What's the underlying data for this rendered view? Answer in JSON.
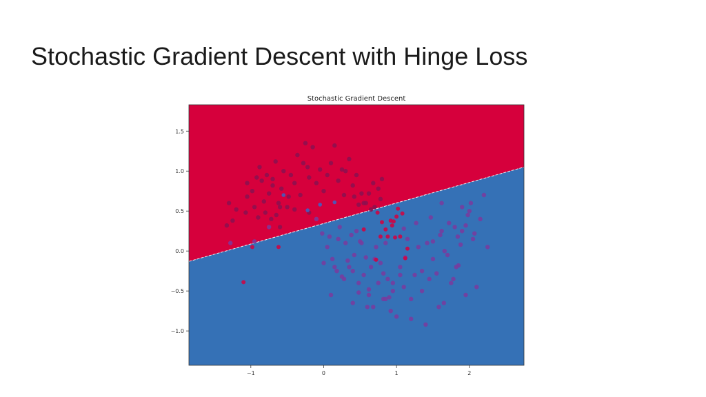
{
  "slide": {
    "title": "Stochastic Gradient Descent with Hinge Loss"
  },
  "chart_data": {
    "type": "scatter",
    "title": "Stochastic Gradient Descent",
    "xlabel": "",
    "ylabel": "",
    "xlim": [
      -1.85,
      2.75
    ],
    "ylim": [
      -1.43,
      1.83
    ],
    "xticks": [
      -1,
      0,
      1,
      2
    ],
    "xtick_labels": [
      "−1",
      "0",
      "1",
      "2"
    ],
    "yticks": [
      1.5,
      1.0,
      0.5,
      0.0,
      -0.5,
      -1.0
    ],
    "ytick_labels": [
      "1.5",
      "1.0",
      "0.5",
      "0.0",
      "−0.5",
      "−1.0"
    ],
    "grid": false,
    "decision_boundary": {
      "x": [
        -1.85,
        2.75
      ],
      "y": [
        -0.13,
        1.05
      ]
    },
    "regions": {
      "above": "#d6003c",
      "below": "#3571b6"
    },
    "series": [
      {
        "color": "#8a1050",
        "x": [
          -1.33,
          -1.25,
          -1.2,
          -1.07,
          -1.05,
          -1.05,
          -0.98,
          -0.95,
          -0.92,
          -0.88,
          -0.85,
          -0.82,
          -0.8,
          -0.78,
          -0.75,
          -0.72,
          -0.7,
          -0.66,
          -0.62,
          -0.6,
          -0.58,
          -0.55,
          -0.5,
          -0.48,
          -0.45,
          -0.4,
          -0.36,
          -0.32,
          -0.28,
          -0.25,
          -0.22,
          -0.2,
          -0.15,
          -0.1,
          -0.05,
          0.0,
          0.05,
          0.1,
          0.15,
          0.2,
          0.25,
          0.3,
          0.35,
          0.4,
          0.45,
          0.55,
          0.62,
          0.68,
          0.7,
          0.75,
          0.78,
          0.8,
          0.65,
          0.58,
          0.52,
          0.48,
          -0.9,
          -0.6,
          -0.65,
          -1.3,
          -0.7,
          0.28,
          -0.2,
          0.42,
          -0.4
        ],
        "y": [
          0.32,
          0.38,
          0.52,
          0.48,
          0.68,
          0.85,
          0.75,
          0.55,
          0.92,
          1.05,
          0.88,
          0.62,
          0.48,
          0.95,
          0.72,
          0.4,
          0.82,
          1.12,
          0.6,
          0.3,
          0.78,
          1.0,
          0.55,
          0.68,
          0.95,
          0.85,
          1.2,
          0.7,
          1.1,
          1.35,
          1.05,
          0.92,
          1.3,
          0.85,
          1.02,
          0.75,
          0.95,
          1.1,
          1.32,
          0.88,
          1.02,
          1.0,
          1.15,
          0.82,
          0.95,
          0.6,
          0.72,
          0.85,
          0.55,
          0.78,
          0.65,
          0.9,
          0.52,
          0.6,
          0.72,
          0.58,
          0.42,
          0.55,
          0.45,
          0.6,
          0.9,
          0.7,
          0.48,
          0.68,
          0.52
        ],
        "r": 3.2
      },
      {
        "color": "#7a3a9e",
        "x": [
          -1.28,
          -0.95,
          -0.75,
          0.2,
          -0.1,
          -0.02,
          0.05,
          0.08,
          0.12,
          0.18,
          0.22,
          0.25,
          0.3,
          0.35,
          0.38,
          0.42,
          0.45,
          0.48,
          0.5,
          0.55,
          0.58,
          0.62,
          0.65,
          0.68,
          0.72,
          0.75,
          0.78,
          0.82,
          0.85,
          0.88,
          0.92,
          0.95,
          1.0,
          1.05,
          1.1,
          1.15,
          1.2,
          1.25,
          1.3,
          1.35,
          1.4,
          1.45,
          1.5,
          1.55,
          1.6,
          1.65,
          1.7,
          1.75,
          1.8,
          1.85,
          1.9,
          1.95,
          2.0,
          2.05,
          2.1,
          2.15,
          2.2,
          2.25,
          0.0,
          0.1,
          0.28,
          0.4,
          0.6,
          0.7,
          0.85,
          0.95,
          1.05,
          1.2,
          1.35,
          1.42,
          1.58,
          1.66,
          1.78,
          1.82,
          1.88,
          1.95,
          2.02,
          1.5,
          1.72,
          1.9,
          0.52,
          0.9,
          0.82,
          0.33,
          0.15,
          1.12,
          1.27,
          1.47,
          1.62,
          2.07,
          1.98,
          1.84,
          1.62,
          1.1,
          0.62,
          0.48,
          0.4
        ],
        "y": [
          0.1,
          0.12,
          0.3,
          0.15,
          0.4,
          0.22,
          0.05,
          0.18,
          -0.1,
          -0.25,
          0.3,
          -0.32,
          0.1,
          -0.2,
          0.2,
          -0.05,
          0.25,
          -0.4,
          0.12,
          -0.3,
          -0.08,
          -0.55,
          -0.2,
          -0.7,
          0.05,
          -0.4,
          -0.15,
          -0.6,
          0.1,
          -0.35,
          -0.75,
          -0.5,
          -0.82,
          -0.2,
          -0.45,
          0.15,
          -0.6,
          -0.3,
          0.05,
          -0.5,
          -0.92,
          -0.35,
          -0.1,
          -0.28,
          0.2,
          -0.65,
          -0.05,
          -0.4,
          0.3,
          -0.18,
          0.25,
          -0.55,
          0.5,
          0.15,
          -0.45,
          0.4,
          0.7,
          0.05,
          -0.15,
          -0.55,
          -0.35,
          -0.25,
          -0.7,
          -0.1,
          -0.6,
          -0.4,
          -0.3,
          -0.85,
          -0.25,
          0.1,
          -0.7,
          0.0,
          -0.35,
          -0.2,
          0.08,
          0.32,
          0.6,
          0.12,
          0.35,
          0.55,
          0.1,
          -0.58,
          -0.28,
          -0.12,
          -0.2,
          -0.08,
          0.35,
          0.42,
          0.25,
          0.22,
          0.45,
          0.18,
          0.6,
          0.28,
          -0.48,
          -0.52,
          -0.65
        ],
        "r": 3.2
      },
      {
        "color": "#d4003f",
        "x": [
          -1.1,
          -0.98,
          -0.62,
          0.55,
          0.72,
          0.74,
          0.78,
          0.8,
          0.85,
          0.88,
          0.92,
          0.94,
          0.96,
          0.98,
          1.0,
          1.02,
          1.05,
          1.08,
          1.12,
          1.15
        ],
        "y": [
          -0.39,
          0.05,
          0.05,
          0.27,
          -0.11,
          0.48,
          0.18,
          0.36,
          0.27,
          0.18,
          0.38,
          0.32,
          0.37,
          0.17,
          0.43,
          0.53,
          0.18,
          0.47,
          -0.09,
          0.03
        ],
        "r": 3.0
      },
      {
        "color": "#3a63c8",
        "x": [
          -0.55,
          -0.22,
          -0.05,
          0.15
        ],
        "y": [
          0.7,
          0.51,
          0.58,
          0.61
        ],
        "r": 2.8
      }
    ]
  }
}
